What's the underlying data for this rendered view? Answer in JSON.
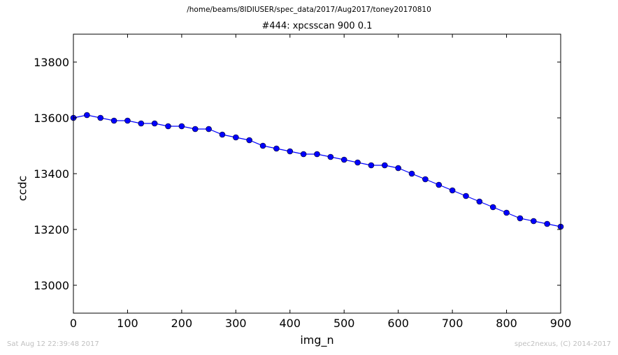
{
  "header": {
    "path": "/home/beams/8IDIUSER/spec_data/2017/Aug2017/toney20170810"
  },
  "footer": {
    "timestamp": "Sat Aug 12 22:39:48 2017",
    "credit": "spec2nexus, (C) 2014-2017"
  },
  "chart_data": {
    "type": "line",
    "title": "#444: xpcsscan 900 0.1",
    "xlabel": "img_n",
    "ylabel": "ccdc",
    "xlim": [
      0,
      900
    ],
    "ylim": [
      12900,
      13900
    ],
    "xticks": [
      0,
      100,
      200,
      300,
      400,
      500,
      600,
      700,
      800,
      900
    ],
    "yticks": [
      13000,
      13200,
      13400,
      13600,
      13800
    ],
    "marker": "circle",
    "line_color": "#0000ff",
    "marker_color": "#0000ff",
    "grid": false,
    "series": [
      {
        "x": [
          0,
          25,
          50,
          75,
          100,
          125,
          150,
          175,
          200,
          225,
          250,
          275,
          300,
          325,
          350,
          375,
          400,
          425,
          450,
          475,
          500,
          525,
          550,
          575,
          600,
          625,
          650,
          675,
          700,
          725,
          750,
          775,
          800,
          825,
          850,
          875,
          900
        ],
        "y": [
          13600,
          13610,
          13600,
          13590,
          13590,
          13580,
          13580,
          13570,
          13570,
          13560,
          13560,
          13540,
          13530,
          13520,
          13500,
          13490,
          13480,
          13470,
          13470,
          13460,
          13450,
          13440,
          13430,
          13430,
          13420,
          13400,
          13380,
          13360,
          13340,
          13320,
          13300,
          13280,
          13260,
          13240,
          13230,
          13220,
          13210
        ]
      }
    ]
  }
}
